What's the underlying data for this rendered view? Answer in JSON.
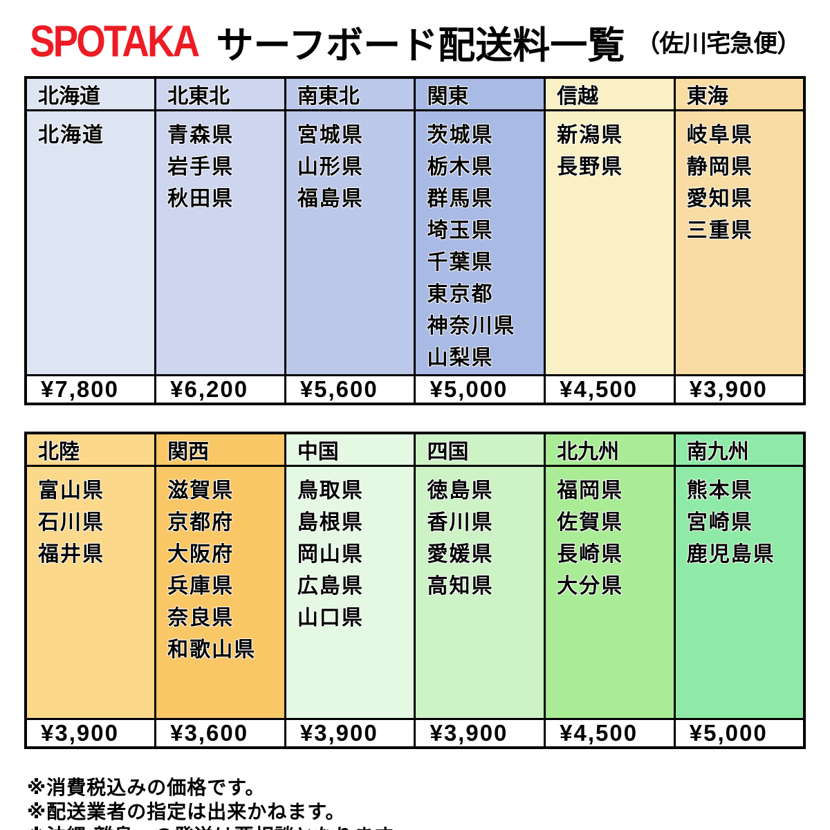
{
  "title": {
    "logo": "SPOTAKA",
    "main": "サーフボード配送料一覧",
    "sub": "（佐川宅急便）"
  },
  "colors": {
    "logo_red": "#ed1c24",
    "border": "#000000",
    "price_bg": "#ffffff"
  },
  "tables": [
    {
      "name": "east-japan",
      "columns": [
        {
          "region": "北海道",
          "prefectures": [
            "北海道"
          ],
          "price": "¥7,800",
          "color": "#dde4f2"
        },
        {
          "region": "北東北",
          "prefectures": [
            "青森県",
            "岩手県",
            "秋田県"
          ],
          "price": "¥6,200",
          "color": "#ced5ee"
        },
        {
          "region": "南東北",
          "prefectures": [
            "宮城県",
            "山形県",
            "福島県"
          ],
          "price": "¥5,600",
          "color": "#bcc8ea"
        },
        {
          "region": "関東",
          "prefectures": [
            "茨城県",
            "栃木県",
            "群馬県",
            "埼玉県",
            "千葉県",
            "東京都",
            "神奈川県",
            "山梨県"
          ],
          "price": "¥5,000",
          "color": "#a9bae5"
        },
        {
          "region": "信越",
          "prefectures": [
            "新潟県",
            "長野県"
          ],
          "price": "¥4,500",
          "color": "#faf0c6"
        },
        {
          "region": "東海",
          "prefectures": [
            "岐阜県",
            "静岡県",
            "愛知県",
            "三重県"
          ],
          "price": "¥3,900",
          "color": "#f8dca4"
        }
      ]
    },
    {
      "name": "west-japan",
      "columns": [
        {
          "region": "北陸",
          "prefectures": [
            "富山県",
            "石川県",
            "福井県"
          ],
          "price": "¥3,900",
          "color": "#fbd88a"
        },
        {
          "region": "関西",
          "prefectures": [
            "滋賀県",
            "京都府",
            "大阪府",
            "兵庫県",
            "奈良県",
            "和歌山県"
          ],
          "price": "¥3,600",
          "color": "#fac767"
        },
        {
          "region": "中国",
          "prefectures": [
            "鳥取県",
            "島根県",
            "岡山県",
            "広島県",
            "山口県"
          ],
          "price": "¥3,900",
          "color": "#e4f8e4"
        },
        {
          "region": "四国",
          "prefectures": [
            "徳島県",
            "香川県",
            "愛媛県",
            "高知県"
          ],
          "price": "¥3,900",
          "color": "#cdf2c6"
        },
        {
          "region": "北九州",
          "prefectures": [
            "福岡県",
            "佐賀県",
            "長崎県",
            "大分県"
          ],
          "price": "¥4,500",
          "color": "#a9ec95"
        },
        {
          "region": "南九州",
          "prefectures": [
            "熊本県",
            "宮崎県",
            "鹿児島県"
          ],
          "price": "¥5,000",
          "color": "#8eeaa6"
        }
      ]
    }
  ],
  "notes": [
    "※消費税込みの価格です。",
    "※配送業者の指定は出来かねます。",
    "※沖縄・離島への発送は要相談となります。"
  ]
}
